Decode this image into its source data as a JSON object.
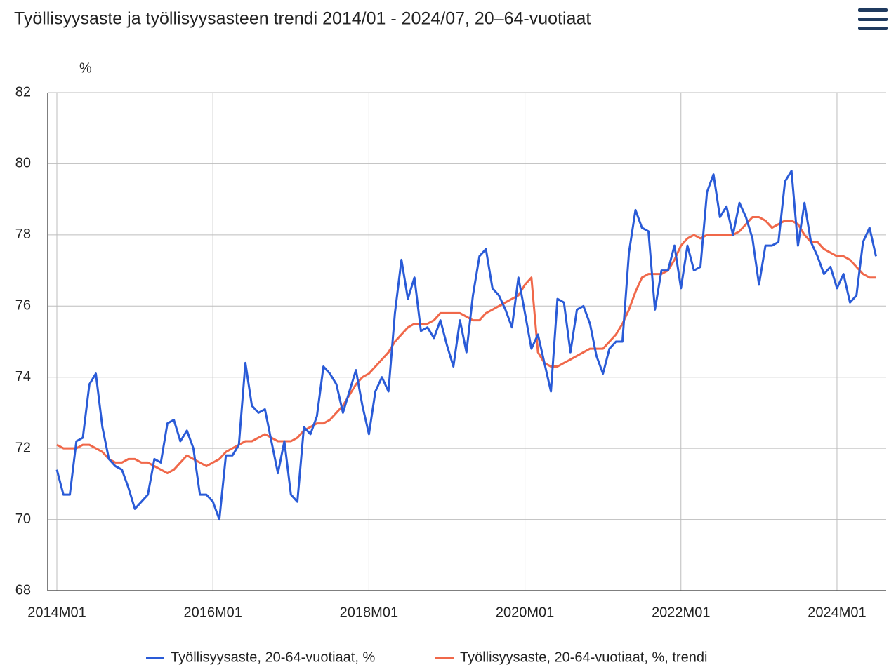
{
  "chart_data": {
    "type": "line",
    "title": "Työllisyysaste ja työllisyysasteen trendi 2014/01 - 2024/07, 20–64-vuotiaat",
    "y_label": "%",
    "categories": [
      "2014M01",
      null,
      null,
      null,
      null,
      null,
      null,
      null,
      null,
      null,
      null,
      null,
      null,
      null,
      null,
      null,
      null,
      null,
      null,
      null,
      null,
      null,
      null,
      null,
      "2016M01",
      null,
      null,
      null,
      null,
      null,
      null,
      null,
      null,
      null,
      null,
      null,
      null,
      null,
      null,
      null,
      null,
      null,
      null,
      null,
      null,
      null,
      null,
      null,
      "2018M01",
      null,
      null,
      null,
      null,
      null,
      null,
      null,
      null,
      null,
      null,
      null,
      null,
      null,
      null,
      null,
      null,
      null,
      null,
      null,
      null,
      null,
      null,
      null,
      "2020M01",
      null,
      null,
      null,
      null,
      null,
      null,
      null,
      null,
      null,
      null,
      null,
      null,
      null,
      null,
      null,
      null,
      null,
      null,
      null,
      null,
      null,
      null,
      null,
      "2022M01",
      null,
      null,
      null,
      null,
      null,
      null,
      null,
      null,
      null,
      null,
      null,
      null,
      null,
      null,
      null,
      null,
      null,
      null,
      null,
      null,
      null,
      null,
      null,
      "2024M01",
      null,
      null,
      null,
      null,
      null,
      null
    ],
    "series": [
      {
        "name": "Työllisyysaste, 20-64-vuotiaat, %",
        "color": "#2a5bd7",
        "values": [
          71.4,
          70.7,
          70.7,
          72.2,
          72.3,
          73.8,
          74.1,
          72.6,
          71.7,
          71.5,
          71.4,
          70.9,
          70.3,
          70.5,
          70.7,
          71.7,
          71.6,
          72.7,
          72.8,
          72.2,
          72.5,
          72.0,
          70.7,
          70.7,
          70.5,
          70.0,
          71.8,
          71.8,
          72.1,
          74.4,
          73.2,
          73.0,
          73.1,
          72.2,
          71.3,
          72.2,
          70.7,
          70.5,
          72.6,
          72.4,
          72.9,
          74.3,
          74.1,
          73.8,
          73.0,
          73.6,
          74.2,
          73.2,
          72.4,
          73.6,
          74.0,
          73.6,
          75.8,
          77.3,
          76.2,
          76.8,
          75.3,
          75.4,
          75.1,
          75.6,
          74.9,
          74.3,
          75.6,
          74.7,
          76.3,
          77.4,
          77.6,
          76.5,
          76.3,
          75.9,
          75.4,
          76.8,
          75.8,
          74.8,
          75.2,
          74.4,
          73.6,
          76.2,
          76.1,
          74.7,
          75.9,
          76.0,
          75.5,
          74.6,
          74.1,
          74.8,
          75.0,
          75.0,
          77.5,
          78.7,
          78.2,
          78.1,
          75.9,
          77.0,
          77.0,
          77.7,
          76.5,
          77.7,
          77.0,
          77.1,
          79.2,
          79.7,
          78.5,
          78.8,
          78.0,
          78.9,
          78.5,
          77.9,
          76.6,
          77.7,
          77.7,
          77.8,
          79.5,
          79.8,
          77.7,
          78.9,
          77.8,
          77.4,
          76.9,
          77.1,
          76.5,
          76.9,
          76.1,
          76.3,
          77.8,
          78.2,
          77.4
        ]
      },
      {
        "name": "Työllisyysaste, 20-64-vuotiaat, %, trendi",
        "color": "#f0684a",
        "values": [
          72.1,
          72.0,
          72.0,
          72.0,
          72.1,
          72.1,
          72.0,
          71.9,
          71.7,
          71.6,
          71.6,
          71.7,
          71.7,
          71.6,
          71.6,
          71.5,
          71.4,
          71.3,
          71.4,
          71.6,
          71.8,
          71.7,
          71.6,
          71.5,
          71.6,
          71.7,
          71.9,
          72.0,
          72.1,
          72.2,
          72.2,
          72.3,
          72.4,
          72.3,
          72.2,
          72.2,
          72.2,
          72.3,
          72.5,
          72.6,
          72.7,
          72.7,
          72.8,
          73.0,
          73.2,
          73.5,
          73.8,
          74.0,
          74.1,
          74.3,
          74.5,
          74.7,
          75.0,
          75.2,
          75.4,
          75.5,
          75.5,
          75.5,
          75.6,
          75.8,
          75.8,
          75.8,
          75.8,
          75.7,
          75.6,
          75.6,
          75.8,
          75.9,
          76.0,
          76.1,
          76.2,
          76.3,
          76.6,
          76.8,
          74.7,
          74.4,
          74.3,
          74.3,
          74.4,
          74.5,
          74.6,
          74.7,
          74.8,
          74.8,
          74.8,
          75.0,
          75.2,
          75.5,
          75.9,
          76.4,
          76.8,
          76.9,
          76.9,
          76.9,
          77.0,
          77.3,
          77.7,
          77.9,
          78.0,
          77.9,
          78.0,
          78.0,
          78.0,
          78.0,
          78.0,
          78.1,
          78.3,
          78.5,
          78.5,
          78.4,
          78.2,
          78.3,
          78.4,
          78.4,
          78.3,
          78.0,
          77.8,
          77.8,
          77.6,
          77.5,
          77.4,
          77.4,
          77.3,
          77.1,
          76.9,
          76.8,
          76.8
        ]
      }
    ],
    "ylim": [
      68,
      82
    ],
    "yticks": [
      68,
      70,
      72,
      74,
      76,
      78,
      80,
      82
    ],
    "grid": true,
    "legend": "bottom"
  }
}
